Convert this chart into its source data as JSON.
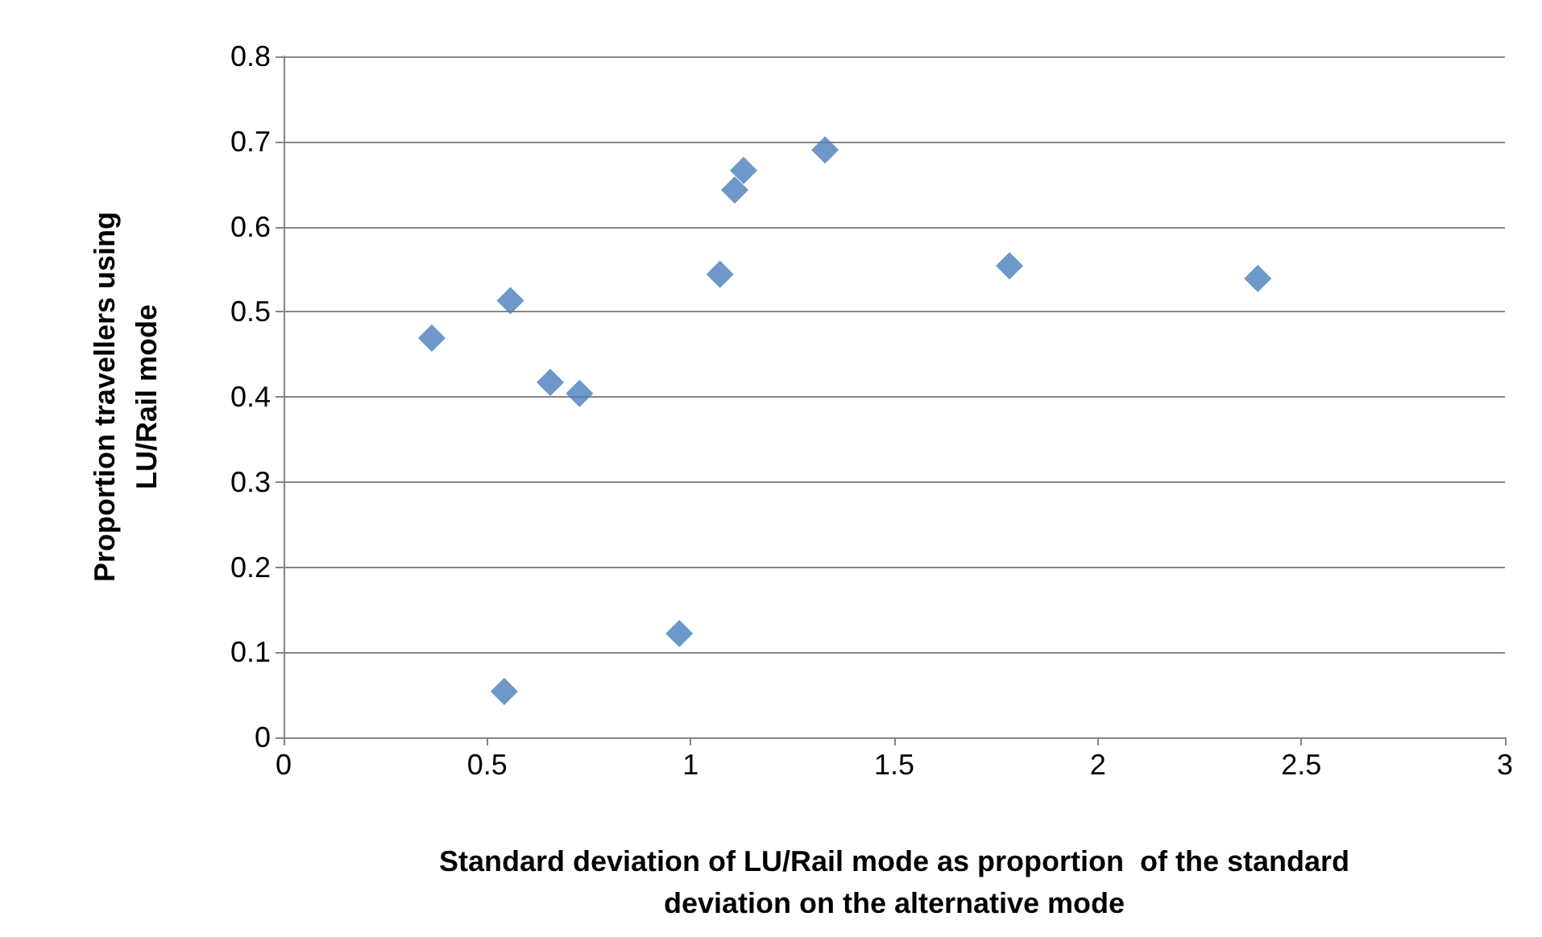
{
  "chart_data": {
    "type": "scatter",
    "xlabel": "Standard deviation of LU/Rail mode as proportion  of the standard deviation on the alternative mode",
    "ylabel": "Proportion travellers using LU/Rail mode",
    "x": [
      0.364,
      0.557,
      0.655,
      0.727,
      0.542,
      0.972,
      1.072,
      1.108,
      1.13,
      1.33,
      1.783,
      2.393
    ],
    "series": [
      {
        "color": "#4a7ebb",
        "values": [
          0.469,
          0.513,
          0.417,
          0.404,
          0.054,
          0.122,
          0.544,
          0.643,
          0.666,
          0.69,
          0.554,
          0.539
        ]
      }
    ],
    "xlim": [
      0,
      3
    ],
    "xticks": [
      0,
      0.5,
      1,
      1.5,
      2,
      2.5,
      3
    ],
    "ylim": [
      0,
      0.8
    ],
    "yticks": [
      0,
      0.1,
      0.2,
      0.3,
      0.4,
      0.5,
      0.6,
      0.7,
      0.8
    ],
    "grid": "y",
    "marker": "diamond"
  }
}
